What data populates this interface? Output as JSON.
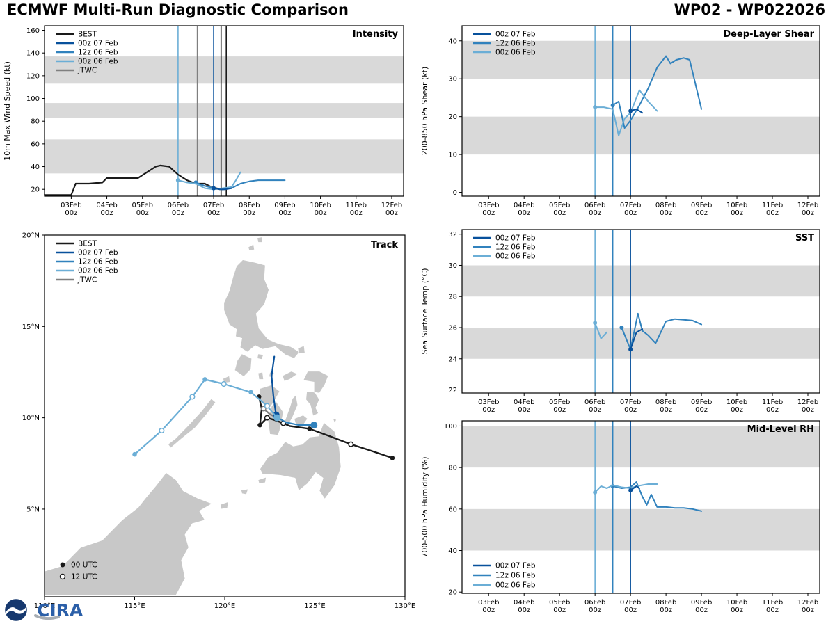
{
  "header": {
    "title_left": "ECMWF Multi-Run Diagnostic Comparison",
    "title_right": "WP02 - WP022026"
  },
  "footer": {
    "cira": "CIRA"
  },
  "colors": {
    "best": "#1a1a1a",
    "jtwc": "#7f7f7f",
    "run_00z07": "#08519c",
    "run_12z06": "#3182bd",
    "run_00z06": "#6baed6",
    "band": "#d9d9d9",
    "land": "#c8c8c8",
    "sea": "#ffffff"
  },
  "labels": {
    "best": "BEST",
    "run_00z07": "00z 07 Feb",
    "run_12z06": "12z 06 Feb",
    "run_00z06": "00z 06 Feb",
    "jtwc": "JTWC",
    "utc00": "00 UTC",
    "utc12": "12 UTC"
  },
  "time_axis": {
    "xlim": [
      -18,
      224
    ],
    "tick_hours": [
      0,
      24,
      48,
      72,
      96,
      120,
      144,
      168,
      192,
      216
    ],
    "tick_days": [
      "03Feb",
      "04Feb",
      "05Feb",
      "06Feb",
      "07Feb",
      "08Feb",
      "09Feb",
      "10Feb",
      "11Feb",
      "12Feb"
    ],
    "tick_hour_label": "00z"
  },
  "chart_data": [
    {
      "id": "intensity",
      "type": "line",
      "title": "Intensity",
      "ylabel": "10m Max Wind Speed (kt)",
      "ylim": [
        14,
        164
      ],
      "yticks": [
        20,
        40,
        60,
        80,
        100,
        120,
        140,
        160
      ],
      "bands": [
        [
          34,
          64
        ],
        [
          83,
          96
        ],
        [
          113,
          137
        ]
      ],
      "vlines": [
        {
          "t": 72,
          "key": "run_00z06"
        },
        {
          "t": 85,
          "key": "jtwc"
        },
        {
          "t": 96,
          "key": "run_00z07"
        },
        {
          "t": 101,
          "key": "best"
        },
        {
          "t": 104.5,
          "key": "best"
        }
      ],
      "legend_pos": "tl",
      "legend": [
        "best",
        "run_00z07",
        "run_12z06",
        "run_00z06",
        "jtwc"
      ],
      "series": [
        {
          "key": "best",
          "points": [
            [
              -18,
              15
            ],
            [
              0,
              15
            ],
            [
              3,
              25
            ],
            [
              12,
              25
            ],
            [
              21,
              26
            ],
            [
              24,
              30
            ],
            [
              45,
              30
            ],
            [
              51,
              35
            ],
            [
              57,
              40
            ],
            [
              60,
              41
            ],
            [
              66,
              40
            ],
            [
              72,
              33
            ],
            [
              78,
              28
            ],
            [
              84,
              25
            ],
            [
              90,
              25
            ],
            [
              96,
              21
            ],
            [
              102,
              20
            ],
            [
              108,
              22
            ]
          ]
        },
        {
          "key": "jtwc",
          "points": [
            [
              85,
              25
            ],
            [
              90,
              23
            ],
            [
              96,
              22
            ],
            [
              100,
              20
            ],
            [
              104,
              20
            ],
            [
              108,
              22
            ]
          ]
        },
        {
          "key": "run_12z06",
          "points": [
            [
              84,
              26
            ],
            [
              90,
              23
            ],
            [
              96,
              21
            ],
            [
              102,
              20
            ],
            [
              108,
              21
            ],
            [
              114,
              25
            ],
            [
              120,
              27
            ],
            [
              126,
              28
            ],
            [
              132,
              28
            ],
            [
              138,
              28
            ],
            [
              144,
              28
            ]
          ]
        },
        {
          "key": "run_00z06",
          "points": [
            [
              72,
              28
            ],
            [
              78,
              26
            ],
            [
              84,
              25
            ],
            [
              90,
              21
            ],
            [
              96,
              20
            ],
            [
              102,
              21
            ],
            [
              108,
              22
            ],
            [
              111,
              28
            ],
            [
              114,
              35
            ]
          ]
        },
        {
          "key": "run_00z07",
          "points": [
            [
              96,
              21
            ],
            [
              100,
              20
            ],
            [
              104,
              20
            ],
            [
              108,
              21
            ]
          ]
        }
      ]
    },
    {
      "id": "shear",
      "type": "line",
      "title": "Deep-Layer Shear",
      "ylabel": "200-850 hPa Shear (kt)",
      "ylim": [
        -1,
        44
      ],
      "yticks": [
        0,
        10,
        20,
        30,
        40
      ],
      "bands": [
        [
          10,
          20
        ],
        [
          30,
          40
        ]
      ],
      "vlines": [
        {
          "t": 72,
          "key": "run_00z06"
        },
        {
          "t": 84,
          "key": "run_12z06"
        },
        {
          "t": 96,
          "key": "run_00z07"
        }
      ],
      "legend_pos": "tl",
      "legend": [
        "run_00z07",
        "run_12z06",
        "run_00z06"
      ],
      "series": [
        {
          "key": "run_12z06",
          "points": [
            [
              84,
              23
            ],
            [
              88,
              24
            ],
            [
              92,
              17
            ],
            [
              96,
              19
            ],
            [
              102,
              23
            ],
            [
              108,
              27.5
            ],
            [
              114,
              33
            ],
            [
              120,
              36
            ],
            [
              123,
              34
            ],
            [
              127,
              35
            ],
            [
              132,
              35.5
            ],
            [
              136,
              35
            ],
            [
              144,
              22
            ]
          ]
        },
        {
          "key": "run_00z06",
          "points": [
            [
              72,
              22.5
            ],
            [
              78,
              22.5
            ],
            [
              84,
              22
            ],
            [
              88,
              15
            ],
            [
              92,
              19.5
            ],
            [
              96,
              21
            ],
            [
              102,
              27
            ],
            [
              108,
              24
            ],
            [
              114,
              21.5
            ]
          ]
        },
        {
          "key": "run_00z07",
          "points": [
            [
              96,
              21.5
            ],
            [
              100,
              22
            ],
            [
              104,
              21
            ]
          ]
        }
      ]
    },
    {
      "id": "sst",
      "type": "line",
      "title": "SST",
      "ylabel": "Sea Surface Temp (°C)",
      "ylim": [
        21.8,
        32.3
      ],
      "yticks": [
        22,
        24,
        26,
        28,
        30,
        32
      ],
      "bands": [
        [
          24,
          26
        ],
        [
          28,
          30
        ]
      ],
      "vlines": [
        {
          "t": 72,
          "key": "run_00z06"
        },
        {
          "t": 84,
          "key": "run_12z06"
        },
        {
          "t": 96,
          "key": "run_00z07"
        }
      ],
      "legend_pos": "tl",
      "legend": [
        "run_00z07",
        "run_12z06",
        "run_00z06"
      ],
      "series": [
        {
          "key": "run_12z06",
          "points": [
            [
              90,
              26.0
            ],
            [
              96,
              24.6
            ],
            [
              101,
              26.9
            ],
            [
              104,
              25.8
            ],
            [
              108,
              25.5
            ],
            [
              113,
              25.0
            ],
            [
              120,
              26.4
            ],
            [
              126,
              26.55
            ],
            [
              132,
              26.5
            ],
            [
              138,
              26.45
            ],
            [
              144,
              26.2
            ]
          ]
        },
        {
          "key": "run_00z06",
          "points": [
            [
              72,
              26.3
            ],
            [
              76,
              25.3
            ],
            [
              80,
              25.7
            ]
          ]
        },
        {
          "key": "run_00z07",
          "points": [
            [
              96,
              24.6
            ],
            [
              100,
              25.7
            ],
            [
              104,
              25.9
            ]
          ]
        }
      ]
    },
    {
      "id": "rh",
      "type": "line",
      "title": "Mid-Level RH",
      "ylabel": "700-500 hPa Humidity (%)",
      "ylim": [
        19.4,
        102.5
      ],
      "yticks": [
        20,
        40,
        60,
        80,
        100
      ],
      "bands": [
        [
          40,
          60
        ],
        [
          80,
          100
        ]
      ],
      "vlines": [
        {
          "t": 72,
          "key": "run_00z06"
        },
        {
          "t": 84,
          "key": "run_12z06"
        },
        {
          "t": 96,
          "key": "run_00z07"
        }
      ],
      "legend_pos": "bl",
      "legend": [
        "run_00z07",
        "run_12z06",
        "run_00z06"
      ],
      "series": [
        {
          "key": "run_12z06",
          "points": [
            [
              84,
              71
            ],
            [
              90,
              70
            ],
            [
              96,
              70.5
            ],
            [
              100,
              73
            ],
            [
              104,
              66
            ],
            [
              107,
              62
            ],
            [
              110,
              67
            ],
            [
              114,
              61
            ],
            [
              120,
              61
            ],
            [
              126,
              60.5
            ],
            [
              132,
              60.5
            ],
            [
              138,
              60
            ],
            [
              144,
              59
            ]
          ]
        },
        {
          "key": "run_00z06",
          "points": [
            [
              72,
              68
            ],
            [
              76,
              71
            ],
            [
              80,
              70
            ],
            [
              84,
              71.5
            ],
            [
              90,
              70.5
            ],
            [
              96,
              70
            ],
            [
              100,
              71
            ],
            [
              104,
              71.5
            ],
            [
              108,
              72
            ],
            [
              114,
              72
            ]
          ]
        },
        {
          "key": "run_00z07",
          "points": [
            [
              96,
              69
            ],
            [
              100,
              71
            ],
            [
              102,
              70
            ]
          ]
        }
      ]
    },
    {
      "id": "track",
      "type": "map",
      "title": "Track",
      "xlim": [
        110,
        130
      ],
      "ylim": [
        0.2,
        20
      ],
      "xticks": [
        [
          110,
          "110°E"
        ],
        [
          115,
          "115°E"
        ],
        [
          120,
          "120°E"
        ],
        [
          125,
          "125°E"
        ],
        [
          130,
          "130°E"
        ]
      ],
      "yticks": [
        [
          5,
          "5°N"
        ],
        [
          10,
          "10°N"
        ],
        [
          15,
          "15°N"
        ],
        [
          20,
          "20°N"
        ]
      ],
      "legend_pos": "tl",
      "legend": [
        "best",
        "run_00z07",
        "run_12z06",
        "run_00z06",
        "jtwc"
      ],
      "marker_legend": [
        [
          "f",
          "utc00"
        ],
        [
          "o",
          "utc12"
        ]
      ],
      "tracks": [
        {
          "key": "best",
          "points": [
            [
              129.3,
              7.8,
              "f"
            ],
            [
              128.1,
              8.2,
              ""
            ],
            [
              127.0,
              8.55,
              "o"
            ],
            [
              125.8,
              9.0,
              ""
            ],
            [
              124.7,
              9.4,
              "f"
            ],
            [
              123.6,
              9.55,
              ""
            ],
            [
              123.25,
              9.7,
              "o"
            ],
            [
              122.7,
              9.9,
              ""
            ],
            [
              122.35,
              10.0,
              "o"
            ],
            [
              121.95,
              9.6,
              "f"
            ],
            [
              122.05,
              10.5,
              ""
            ],
            [
              121.9,
              11.15,
              "f"
            ]
          ]
        },
        {
          "key": "jtwc",
          "points": [
            [
              122.9,
              10.0,
              "f"
            ],
            [
              122.5,
              10.2,
              ""
            ],
            [
              122.15,
              10.5,
              "o"
            ]
          ]
        },
        {
          "key": "run_00z07",
          "points": [
            [
              122.85,
              10.15,
              "F"
            ],
            [
              122.7,
              11.2,
              ""
            ],
            [
              122.6,
              12.3,
              ""
            ],
            [
              122.75,
              13.35,
              ""
            ]
          ]
        },
        {
          "key": "run_12z06",
          "points": [
            [
              122.85,
              10.05,
              "f"
            ],
            [
              123.4,
              9.75,
              ""
            ],
            [
              124.1,
              9.6,
              ""
            ],
            [
              124.95,
              9.6,
              "F"
            ]
          ]
        },
        {
          "key": "run_00z06",
          "points": [
            [
              122.9,
              10.0,
              "F"
            ],
            [
              122.35,
              10.65,
              "o"
            ],
            [
              121.45,
              11.4,
              "f"
            ],
            [
              119.95,
              11.85,
              "o"
            ],
            [
              118.9,
              12.1,
              "f"
            ],
            [
              118.2,
              11.15,
              "o"
            ],
            [
              116.5,
              9.3,
              "o"
            ],
            [
              115.0,
              8.0,
              "f"
            ]
          ]
        }
      ]
    }
  ]
}
